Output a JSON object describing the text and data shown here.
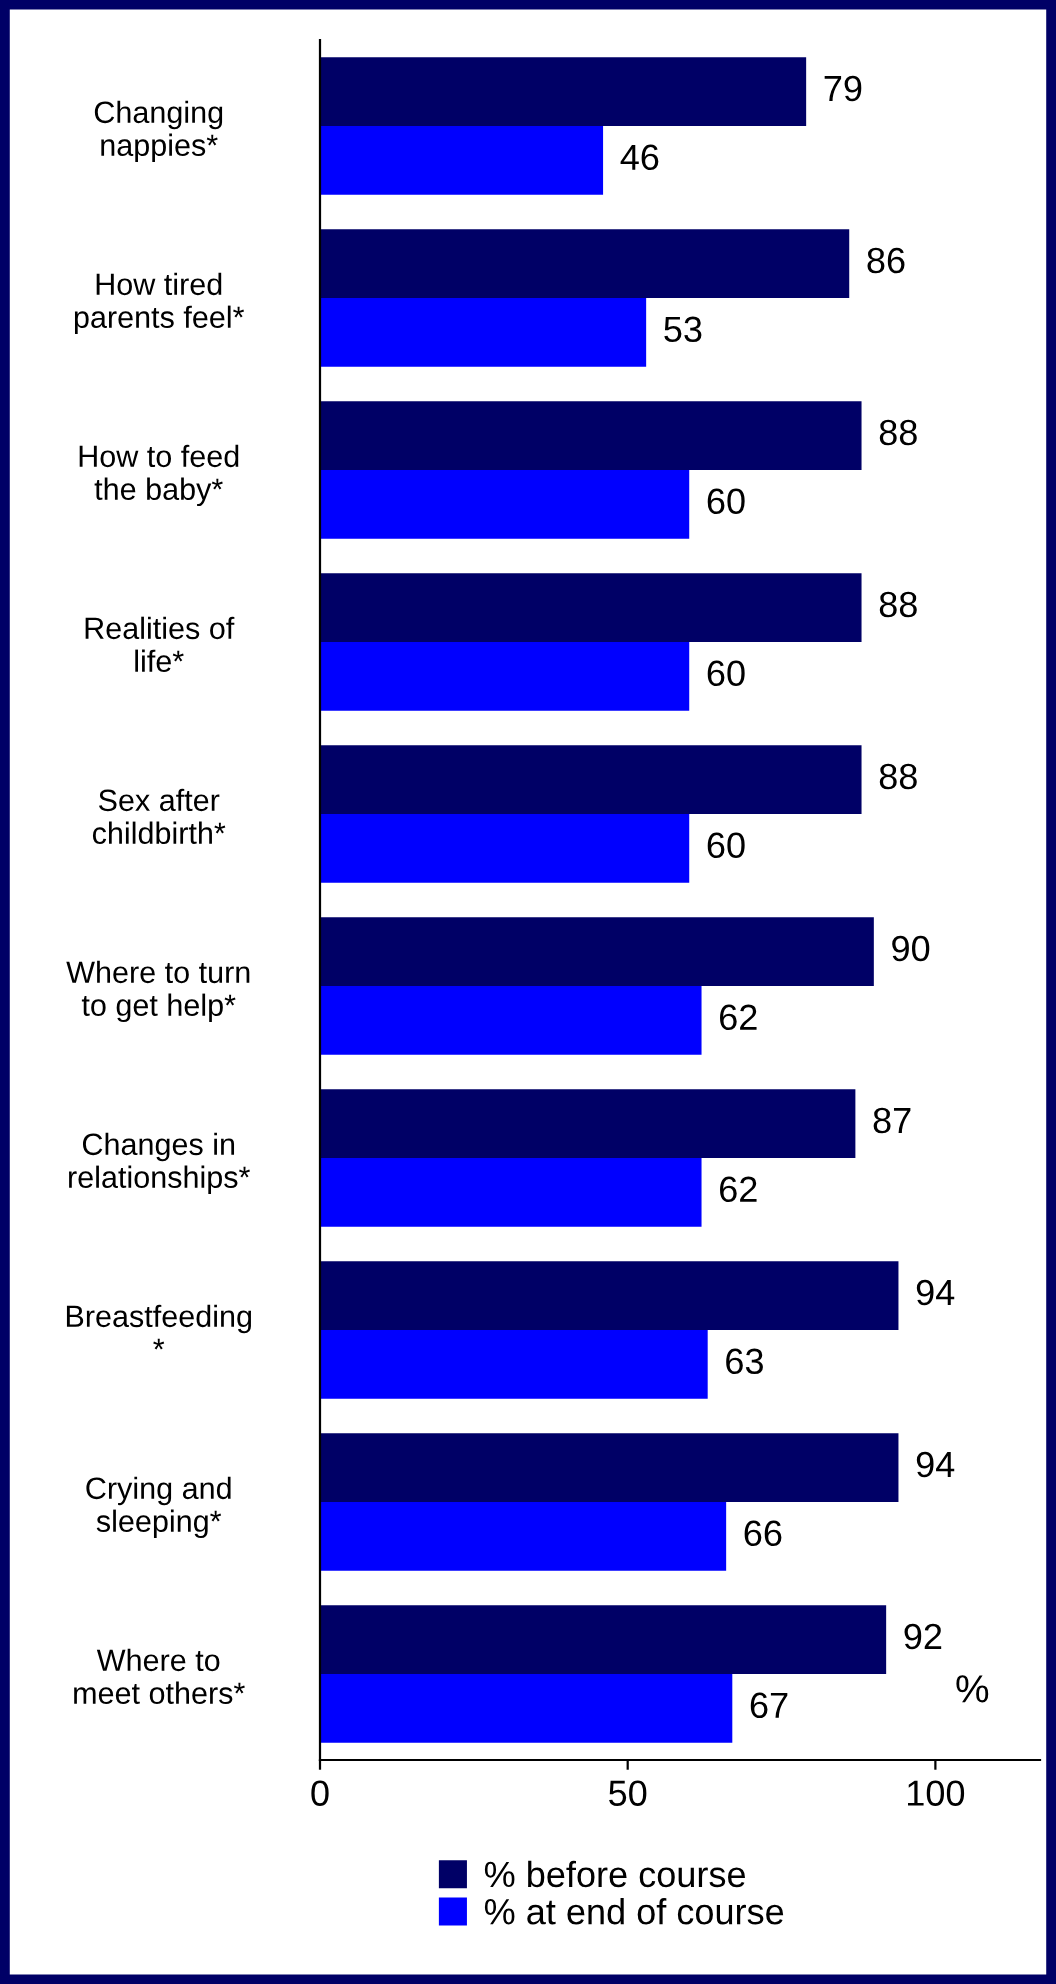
{
  "chart_data": {
    "type": "bar",
    "orientation": "horizontal",
    "xlabel": "%",
    "categories": [
      "Changing\nnappies*",
      "How tired\nparents feel*",
      "How to feed\nthe baby*",
      "Realities of\nlife*",
      "Sex after\nchildbirth*",
      "Where to turn\nto get help*",
      "Changes in\nrelationships*",
      "Breastfeeding\n*",
      "Crying and\nsleeping*",
      "Where to\nmeet others*"
    ],
    "series": [
      {
        "name": "% before course",
        "color": "#000066",
        "values": [
          79,
          86,
          88,
          88,
          88,
          90,
          87,
          94,
          94,
          92
        ]
      },
      {
        "name": "% at end of course",
        "color": "#0000ff",
        "values": [
          46,
          53,
          60,
          60,
          60,
          62,
          62,
          63,
          66,
          67
        ]
      }
    ],
    "xlim": [
      0,
      117
    ],
    "xticks": [
      0,
      50,
      100
    ],
    "data_labels": true,
    "legend": "bottom",
    "grid": false
  }
}
